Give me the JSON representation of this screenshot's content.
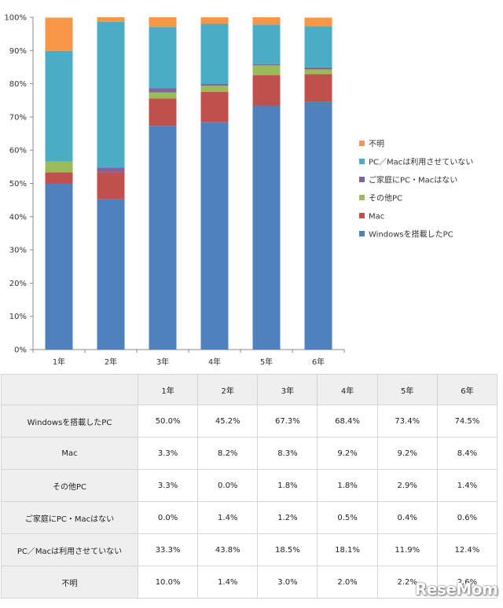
{
  "chart_data": {
    "type": "bar",
    "stacked": true,
    "categories": [
      "1年",
      "2年",
      "3年",
      "4年",
      "5年",
      "6年"
    ],
    "y_ticks": [
      "0%",
      "10%",
      "20%",
      "30%",
      "40%",
      "50%",
      "60%",
      "70%",
      "80%",
      "90%",
      "100%"
    ],
    "ylim": [
      0,
      100
    ],
    "legend_position": "right",
    "series": [
      {
        "name": "Windowsを搭載したPC",
        "color": "#4f81bd",
        "values": [
          50.0,
          45.2,
          67.3,
          68.4,
          73.4,
          74.5
        ]
      },
      {
        "name": "Mac",
        "color": "#c0504d",
        "values": [
          3.3,
          8.2,
          8.3,
          9.2,
          9.2,
          8.4
        ]
      },
      {
        "name": "その他PC",
        "color": "#9bbb59",
        "values": [
          3.3,
          0.0,
          1.8,
          1.8,
          2.9,
          1.4
        ]
      },
      {
        "name": "ご家庭にPC・Macはない",
        "color": "#8064a2",
        "values": [
          0.0,
          1.4,
          1.2,
          0.5,
          0.4,
          0.6
        ]
      },
      {
        "name": "PC／Macは利用させていない",
        "color": "#4bacc6",
        "values": [
          33.3,
          43.8,
          18.5,
          18.1,
          11.9,
          12.4
        ]
      },
      {
        "name": "不明",
        "color": "#f79646",
        "values": [
          10.0,
          1.4,
          3.0,
          2.0,
          2.2,
          2.6
        ]
      }
    ]
  },
  "table": {
    "headers": [
      "",
      "1年",
      "2年",
      "3年",
      "4年",
      "5年",
      "6年"
    ],
    "rows": [
      {
        "label": "Windowsを搭載したPC",
        "cells": [
          "50.0%",
          "45.2%",
          "67.3%",
          "68.4%",
          "73.4%",
          "74.5%"
        ]
      },
      {
        "label": "Mac",
        "cells": [
          "3.3%",
          "8.2%",
          "8.3%",
          "9.2%",
          "9.2%",
          "8.4%"
        ]
      },
      {
        "label": "その他PC",
        "cells": [
          "3.3%",
          "0.0%",
          "1.8%",
          "1.8%",
          "2.9%",
          "1.4%"
        ]
      },
      {
        "label": "ご家庭にPC・Macはない",
        "cells": [
          "0.0%",
          "1.4%",
          "1.2%",
          "0.5%",
          "0.4%",
          "0.6%"
        ]
      },
      {
        "label": "PC／Macは利用させていない",
        "cells": [
          "33.3%",
          "43.8%",
          "18.5%",
          "18.1%",
          "11.9%",
          "12.4%"
        ]
      },
      {
        "label": "不明",
        "cells": [
          "10.0%",
          "1.4%",
          "3.0%",
          "2.0%",
          "2.2%",
          "2.6%"
        ]
      }
    ]
  },
  "watermark": "ReseMom"
}
